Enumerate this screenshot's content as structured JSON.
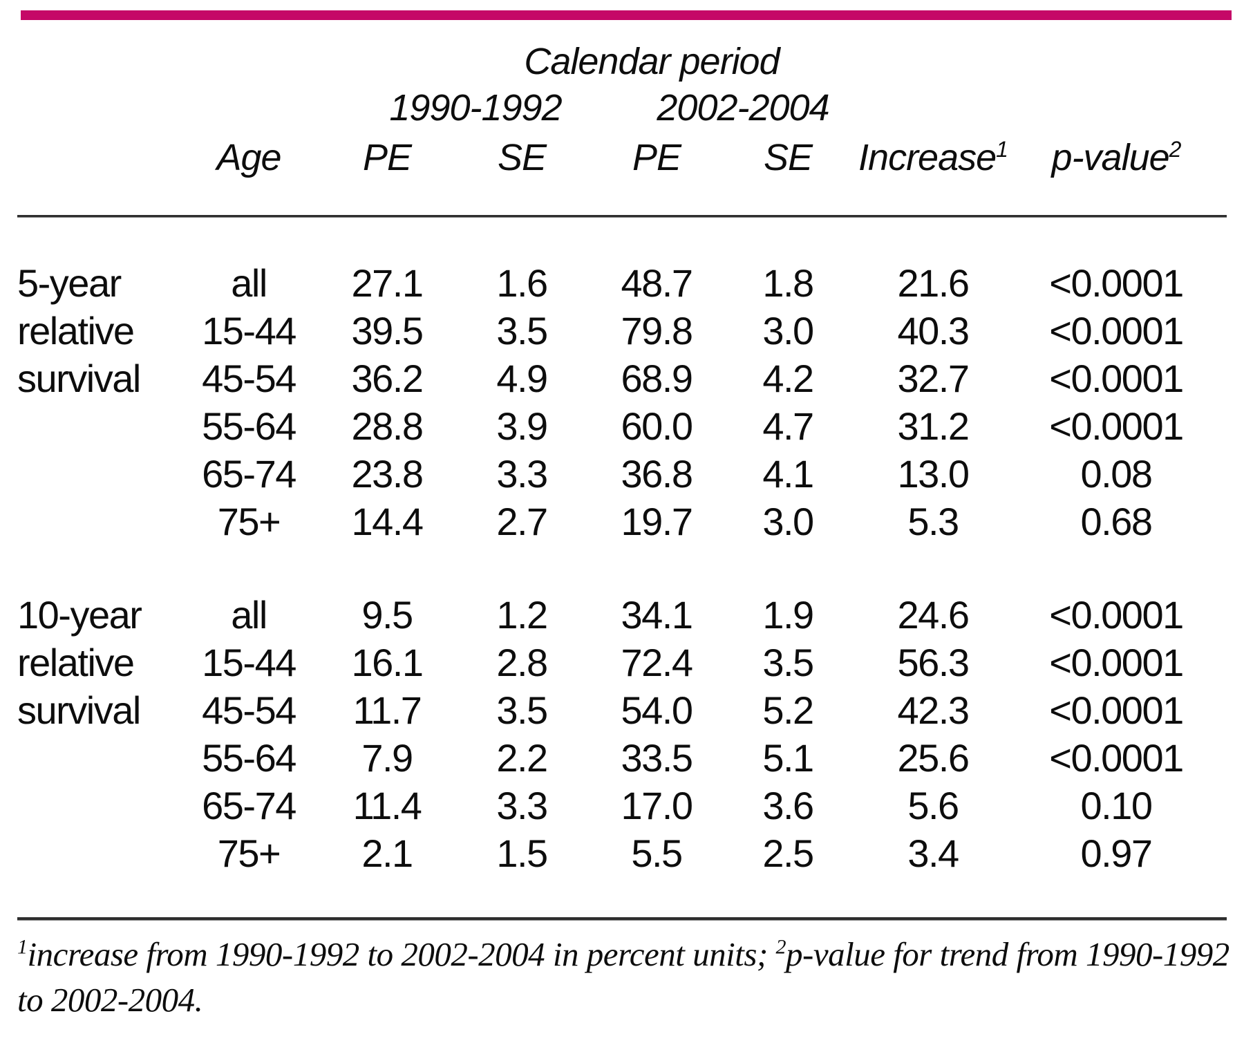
{
  "accent_color": "#C50867",
  "table": {
    "title": "Calendar period",
    "periods": [
      "1990-1992",
      "2002-2004"
    ],
    "columns": {
      "age": "Age",
      "pe1": "PE",
      "se1": "SE",
      "pe2": "PE",
      "se2": "SE",
      "increase": "Increase",
      "increase_sup": "1",
      "pvalue": "p-value",
      "pvalue_sup": "2"
    },
    "sections": [
      {
        "group_label_lines": [
          "5-year",
          "relative",
          "survival"
        ],
        "rows": [
          {
            "age": "all",
            "pe1": "27.1",
            "se1": "1.6",
            "pe2": "48.7",
            "se2": "1.8",
            "increase": "21.6",
            "pvalue": "<0.0001"
          },
          {
            "age": "15-44",
            "pe1": "39.5",
            "se1": "3.5",
            "pe2": "79.8",
            "se2": "3.0",
            "increase": "40.3",
            "pvalue": "<0.0001"
          },
          {
            "age": "45-54",
            "pe1": "36.2",
            "se1": "4.9",
            "pe2": "68.9",
            "se2": "4.2",
            "increase": "32.7",
            "pvalue": "<0.0001"
          },
          {
            "age": "55-64",
            "pe1": "28.8",
            "se1": "3.9",
            "pe2": "60.0",
            "se2": "4.7",
            "increase": "31.2",
            "pvalue": "<0.0001"
          },
          {
            "age": "65-74",
            "pe1": "23.8",
            "se1": "3.3",
            "pe2": "36.8",
            "se2": "4.1",
            "increase": "13.0",
            "pvalue": "0.08"
          },
          {
            "age": "75+",
            "pe1": "14.4",
            "se1": "2.7",
            "pe2": "19.7",
            "se2": "3.0",
            "increase": "5.3",
            "pvalue": "0.68"
          }
        ]
      },
      {
        "group_label_lines": [
          "10-year",
          "relative",
          "survival"
        ],
        "rows": [
          {
            "age": "all",
            "pe1": "9.5",
            "se1": "1.2",
            "pe2": "34.1",
            "se2": "1.9",
            "increase": "24.6",
            "pvalue": "<0.0001"
          },
          {
            "age": "15-44",
            "pe1": "16.1",
            "se1": "2.8",
            "pe2": "72.4",
            "se2": "3.5",
            "increase": "56.3",
            "pvalue": "<0.0001"
          },
          {
            "age": "45-54",
            "pe1": "11.7",
            "se1": "3.5",
            "pe2": "54.0",
            "se2": "5.2",
            "increase": "42.3",
            "pvalue": "<0.0001"
          },
          {
            "age": "55-64",
            "pe1": "7.9",
            "se1": "2.2",
            "pe2": "33.5",
            "se2": "5.1",
            "increase": "25.6",
            "pvalue": "<0.0001"
          },
          {
            "age": "65-74",
            "pe1": "11.4",
            "se1": "3.3",
            "pe2": "17.0",
            "se2": "3.6",
            "increase": "5.6",
            "pvalue": "0.10"
          },
          {
            "age": "75+",
            "pe1": "2.1",
            "se1": "1.5",
            "pe2": "5.5",
            "se2": "2.5",
            "increase": "3.4",
            "pvalue": "0.97"
          }
        ]
      }
    ]
  },
  "footnote": {
    "sup1": "1",
    "part1": "increase from 1990-1992 to 2002-2004 in percent units; ",
    "sup2": "2",
    "part2": "p-value for trend from 1990-1992 to 2002-2004."
  }
}
